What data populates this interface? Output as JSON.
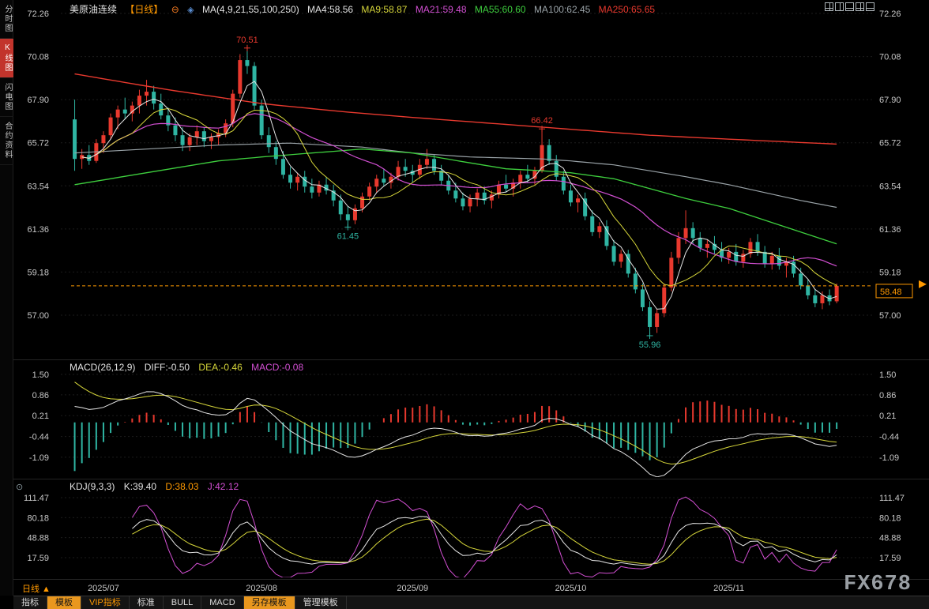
{
  "header": {
    "symbol": "美原油连续",
    "period_badge": "【日线】",
    "ma_settings": "MA(4,9,21,55,100,250)",
    "ma4": "MA4:58.56",
    "ma9": "MA9:58.87",
    "ma21": "MA21:59.48",
    "ma55": "MA55:60.60",
    "ma100": "MA100:62.45",
    "ma250": "MA250:65.65"
  },
  "sidebar": {
    "items": [
      {
        "label": "分时图"
      },
      {
        "label": "K线图"
      },
      {
        "label": "闪电图"
      },
      {
        "label": "合约资料"
      }
    ]
  },
  "macd_legend": {
    "title": "MACD(26,12,9)",
    "diff": "DIFF:-0.50",
    "dea": "DEA:-0.46",
    "macd": "MACD:-0.08"
  },
  "kdj_legend": {
    "title": "KDJ(9,3,3)",
    "k": "K:39.40",
    "d": "D:38.03",
    "j": "J:42.12"
  },
  "footer": {
    "period_selector": "日线 ▲",
    "watermark": "FX678"
  },
  "toolbar": {
    "items": [
      {
        "label": "指标"
      },
      {
        "label": "模板"
      },
      {
        "label": "VIP指标"
      },
      {
        "label": "标准"
      },
      {
        "label": "BULL"
      },
      {
        "label": "MACD"
      },
      {
        "label": "另存模板"
      },
      {
        "label": "管理模板"
      }
    ]
  },
  "chart_data": {
    "type": "candlestick",
    "title": "美原油连续 日线",
    "x_axis": {
      "tick_indices": [
        4,
        26,
        47,
        69,
        91
      ],
      "tick_labels": [
        "2025/07",
        "2025/08",
        "2025/09",
        "2025/10",
        "2025/11"
      ]
    },
    "panels": {
      "price": {
        "y_ticks": [
          72.26,
          70.08,
          67.9,
          65.72,
          63.54,
          61.36,
          59.18,
          57.0
        ],
        "last_price": 58.48,
        "annotations": [
          {
            "index": 24,
            "price": 70.51,
            "label": "70.51",
            "type": "high"
          },
          {
            "index": 65,
            "price": 66.42,
            "label": "66.42",
            "type": "high"
          },
          {
            "index": 38,
            "price": 61.45,
            "label": "61.45",
            "type": "low"
          },
          {
            "index": 80,
            "price": 55.96,
            "label": "55.96",
            "type": "low"
          }
        ],
        "candles": [
          [
            66.9,
            67.9,
            64.3,
            64.9
          ],
          [
            64.9,
            65.4,
            64.4,
            65.1
          ],
          [
            65.1,
            65.6,
            64.6,
            64.8
          ],
          [
            64.8,
            65.9,
            64.7,
            65.7
          ],
          [
            65.7,
            66.3,
            65.2,
            66.1
          ],
          [
            66.1,
            67.2,
            65.9,
            67.0
          ],
          [
            67.0,
            67.6,
            66.4,
            67.4
          ],
          [
            67.4,
            68.0,
            66.9,
            67.2
          ],
          [
            67.2,
            67.8,
            66.8,
            67.6
          ],
          [
            67.6,
            68.4,
            67.2,
            68.1
          ],
          [
            68.1,
            68.9,
            67.6,
            68.3
          ],
          [
            68.3,
            68.6,
            67.4,
            67.7
          ],
          [
            67.7,
            68.2,
            66.9,
            67.1
          ],
          [
            67.1,
            67.5,
            66.3,
            66.6
          ],
          [
            66.6,
            67.0,
            65.8,
            66.1
          ],
          [
            66.1,
            66.5,
            65.3,
            65.6
          ],
          [
            65.6,
            66.2,
            65.3,
            66.0
          ],
          [
            66.0,
            66.6,
            65.6,
            66.3
          ],
          [
            66.3,
            66.5,
            65.5,
            65.8
          ],
          [
            65.8,
            66.2,
            65.4,
            66.0
          ],
          [
            66.0,
            66.4,
            65.6,
            66.2
          ],
          [
            66.2,
            66.9,
            66.0,
            66.7
          ],
          [
            66.7,
            68.4,
            66.5,
            68.2
          ],
          [
            68.2,
            70.2,
            68.0,
            69.9
          ],
          [
            69.9,
            70.51,
            69.2,
            69.6
          ],
          [
            69.6,
            69.8,
            67.4,
            67.6
          ],
          [
            67.6,
            67.9,
            65.9,
            66.1
          ],
          [
            66.1,
            66.5,
            65.2,
            65.5
          ],
          [
            65.5,
            65.8,
            64.6,
            64.9
          ],
          [
            64.9,
            65.3,
            63.9,
            64.1
          ],
          [
            64.1,
            64.5,
            63.4,
            63.7
          ],
          [
            63.7,
            64.2,
            63.3,
            64.0
          ],
          [
            64.0,
            64.3,
            63.2,
            63.5
          ],
          [
            63.5,
            63.9,
            62.9,
            63.2
          ],
          [
            63.2,
            63.8,
            63.0,
            63.6
          ],
          [
            63.6,
            64.0,
            63.1,
            63.3
          ],
          [
            63.3,
            63.6,
            62.5,
            62.8
          ],
          [
            62.8,
            63.1,
            61.8,
            62.1
          ],
          [
            62.1,
            62.5,
            61.45,
            61.8
          ],
          [
            61.8,
            62.6,
            61.6,
            62.4
          ],
          [
            62.4,
            63.2,
            62.2,
            63.0
          ],
          [
            63.0,
            63.7,
            62.8,
            63.5
          ],
          [
            63.5,
            64.1,
            63.2,
            63.9
          ],
          [
            63.9,
            64.4,
            63.5,
            63.7
          ],
          [
            63.7,
            64.2,
            63.4,
            64.0
          ],
          [
            64.0,
            64.8,
            63.8,
            64.5
          ],
          [
            64.5,
            64.9,
            64.0,
            64.3
          ],
          [
            64.3,
            64.6,
            63.7,
            64.1
          ],
          [
            64.1,
            64.9,
            63.9,
            64.6
          ],
          [
            64.6,
            65.4,
            64.4,
            64.9
          ],
          [
            64.9,
            65.1,
            64.1,
            64.3
          ],
          [
            64.3,
            64.6,
            63.6,
            63.8
          ],
          [
            63.8,
            64.1,
            63.1,
            63.3
          ],
          [
            63.3,
            63.7,
            62.7,
            62.9
          ],
          [
            62.9,
            63.2,
            62.3,
            62.5
          ],
          [
            62.5,
            63.1,
            62.2,
            62.9
          ],
          [
            62.9,
            63.4,
            62.5,
            63.2
          ],
          [
            63.2,
            63.5,
            62.6,
            62.8
          ],
          [
            62.8,
            63.3,
            62.4,
            63.1
          ],
          [
            63.1,
            63.8,
            62.9,
            63.6
          ],
          [
            63.6,
            64.1,
            63.2,
            63.4
          ],
          [
            63.4,
            63.9,
            63.0,
            63.7
          ],
          [
            63.7,
            64.3,
            63.4,
            64.1
          ],
          [
            64.1,
            64.6,
            63.7,
            63.9
          ],
          [
            63.9,
            64.5,
            63.6,
            64.3
          ],
          [
            64.3,
            66.42,
            64.2,
            65.6
          ],
          [
            65.6,
            65.9,
            64.6,
            64.8
          ],
          [
            64.8,
            65.1,
            63.8,
            64.0
          ],
          [
            64.0,
            64.3,
            63.1,
            63.3
          ],
          [
            63.3,
            63.6,
            62.5,
            62.7
          ],
          [
            62.7,
            63.1,
            62.2,
            62.9
          ],
          [
            62.9,
            63.2,
            61.8,
            62.0
          ],
          [
            62.0,
            62.3,
            61.0,
            61.2
          ],
          [
            61.2,
            61.7,
            60.9,
            61.5
          ],
          [
            61.5,
            61.8,
            60.3,
            60.5
          ],
          [
            60.5,
            60.8,
            59.5,
            59.7
          ],
          [
            59.7,
            60.3,
            59.4,
            60.1
          ],
          [
            60.1,
            60.3,
            58.9,
            59.1
          ],
          [
            59.1,
            59.4,
            58.1,
            58.3
          ],
          [
            58.3,
            58.6,
            57.2,
            57.4
          ],
          [
            57.4,
            57.7,
            55.96,
            56.4
          ],
          [
            56.4,
            57.3,
            56.1,
            57.1
          ],
          [
            57.1,
            58.6,
            56.9,
            58.4
          ],
          [
            58.4,
            60.2,
            58.2,
            59.9
          ],
          [
            59.9,
            61.2,
            59.6,
            60.9
          ],
          [
            60.9,
            62.3,
            60.6,
            61.4
          ],
          [
            61.4,
            61.7,
            60.6,
            60.9
          ],
          [
            60.9,
            61.2,
            60.2,
            60.4
          ],
          [
            60.4,
            60.8,
            59.9,
            60.6
          ],
          [
            60.6,
            61.0,
            60.1,
            60.3
          ],
          [
            60.3,
            60.7,
            59.7,
            59.9
          ],
          [
            59.9,
            60.4,
            59.6,
            60.2
          ],
          [
            60.2,
            60.6,
            59.5,
            59.7
          ],
          [
            59.7,
            60.3,
            59.4,
            60.1
          ],
          [
            60.1,
            60.9,
            59.9,
            60.7
          ],
          [
            60.7,
            61.1,
            60.0,
            60.2
          ],
          [
            60.2,
            60.5,
            59.4,
            59.6
          ],
          [
            59.6,
            60.2,
            59.3,
            60.0
          ],
          [
            60.0,
            60.4,
            59.3,
            59.5
          ],
          [
            59.5,
            59.9,
            58.9,
            59.7
          ],
          [
            59.7,
            60.0,
            58.9,
            59.1
          ],
          [
            59.1,
            59.4,
            58.3,
            58.5
          ],
          [
            58.5,
            58.8,
            57.8,
            58.0
          ],
          [
            58.0,
            58.3,
            57.4,
            57.6
          ],
          [
            57.6,
            58.2,
            57.3,
            58.0
          ],
          [
            58.0,
            58.3,
            57.5,
            57.7
          ],
          [
            57.7,
            58.6,
            57.6,
            58.48
          ]
        ],
        "ma55_anchors": [
          [
            0,
            63.6
          ],
          [
            10,
            64.2
          ],
          [
            20,
            64.8
          ],
          [
            26,
            65.0
          ],
          [
            40,
            65.4
          ],
          [
            47,
            65.2
          ],
          [
            55,
            64.7
          ],
          [
            60,
            64.4
          ],
          [
            65,
            64.3
          ],
          [
            69,
            64.2
          ],
          [
            75,
            63.9
          ],
          [
            80,
            63.4
          ],
          [
            85,
            62.9
          ],
          [
            91,
            62.4
          ],
          [
            96,
            61.8
          ],
          [
            101,
            61.2
          ],
          [
            106,
            60.6
          ]
        ],
        "ma100_anchors": [
          [
            0,
            65.2
          ],
          [
            10,
            65.4
          ],
          [
            20,
            65.6
          ],
          [
            30,
            65.7
          ],
          [
            40,
            65.5
          ],
          [
            47,
            65.2
          ],
          [
            55,
            65.0
          ],
          [
            65,
            64.9
          ],
          [
            69,
            64.8
          ],
          [
            75,
            64.6
          ],
          [
            80,
            64.3
          ],
          [
            85,
            64.0
          ],
          [
            91,
            63.6
          ],
          [
            96,
            63.2
          ],
          [
            101,
            62.8
          ],
          [
            106,
            62.45
          ]
        ],
        "ma250_anchors": [
          [
            0,
            69.2
          ],
          [
            13,
            68.4
          ],
          [
            26,
            67.7
          ],
          [
            37,
            67.3
          ],
          [
            47,
            67.0
          ],
          [
            58,
            66.7
          ],
          [
            69,
            66.4
          ],
          [
            80,
            66.1
          ],
          [
            91,
            65.9
          ],
          [
            106,
            65.65
          ]
        ]
      },
      "macd": {
        "params": [
          26,
          12,
          9
        ],
        "diff": -0.5,
        "dea": -0.46,
        "macd": -0.08,
        "y_ticks": [
          1.5,
          0.86,
          0.21,
          -0.44,
          -1.09
        ]
      },
      "kdj": {
        "params": [
          9,
          3,
          3
        ],
        "k": 39.4,
        "d": 38.03,
        "j": 42.12,
        "y_ticks": [
          111.47,
          80.18,
          48.88,
          17.59
        ]
      }
    },
    "colors": {
      "up": "#e8392e",
      "down": "#2fb5a3",
      "ma4": "#e6e6e6",
      "ma9": "#d6d63a",
      "ma21": "#d24fd2",
      "ma55": "#3ecf3e",
      "ma100": "#9aa3a8",
      "ma250": "#e8392e",
      "accent": "#ff9900",
      "high_label": "#e8392e",
      "low_label": "#2fb5a3",
      "axis_text": "#c8c8c8"
    }
  }
}
